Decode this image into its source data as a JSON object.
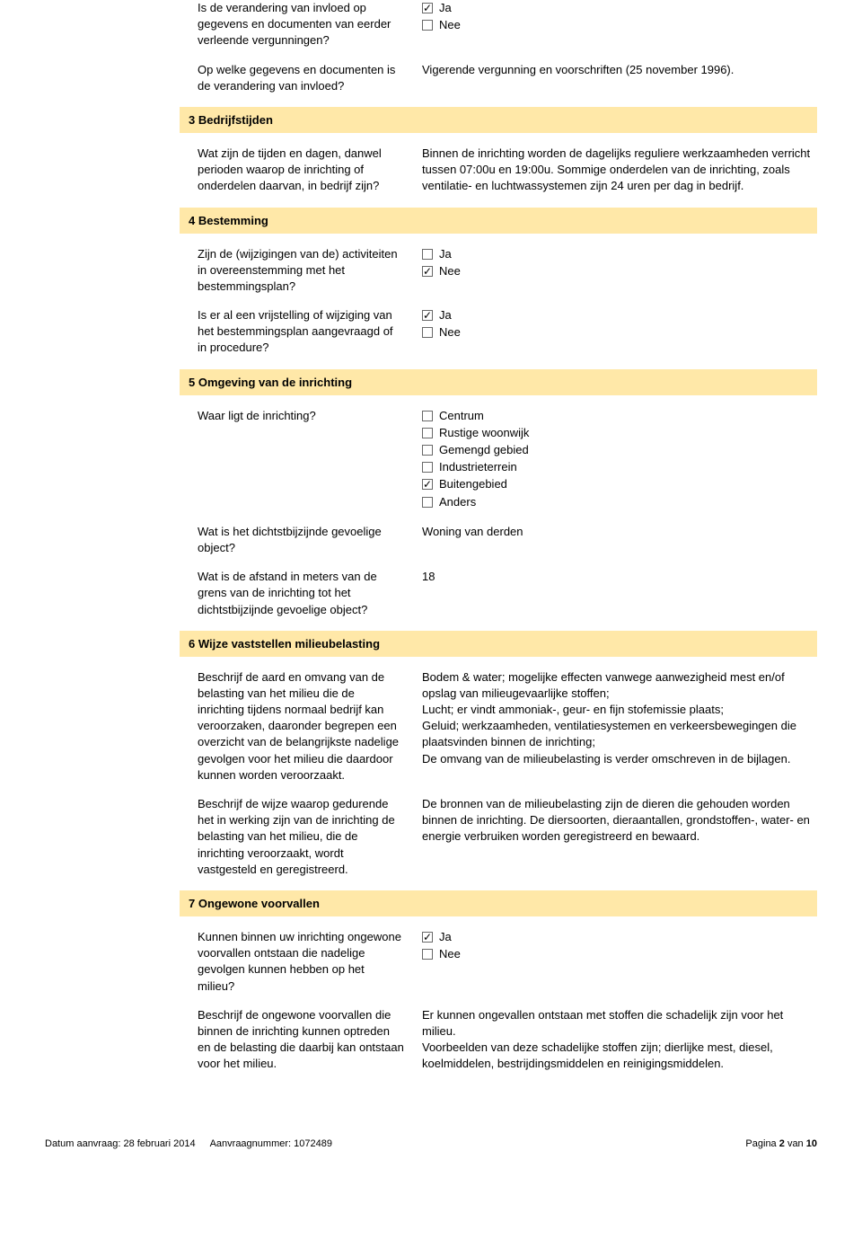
{
  "colors": {
    "header_bg": "#ffe8a8",
    "text": "#000000",
    "checkbox_border": "#686868"
  },
  "s2": {
    "q1": "Is de verandering van invloed op gegevens en documenten van eerder verleende vergunningen?",
    "a1_ja": "Ja",
    "a1_nee": "Nee",
    "q2": "Op welke gegevens en documenten is de verandering van invloed?",
    "a2": "Vigerende vergunning en voorschriften (25 november 1996)."
  },
  "s3": {
    "title": "3 Bedrijfstijden",
    "q1": "Wat zijn de tijden en dagen, danwel perioden waarop de inrichting of onderdelen daarvan, in bedrijf zijn?",
    "a1": "Binnen de inrichting worden de dagelijks reguliere werkzaamheden verricht tussen 07:00u en 19:00u. Sommige onderdelen van de inrichting, zoals ventilatie- en luchtwassystemen zijn 24 uren per dag in bedrijf."
  },
  "s4": {
    "title": "4 Bestemming",
    "q1": "Zijn de (wijzigingen van de) activiteiten in overeenstemming met het bestemmingsplan?",
    "a1_ja": "Ja",
    "a1_nee": "Nee",
    "q2": "Is er al een vrijstelling of wijziging van het bestemmingsplan aangevraagd of in procedure?",
    "a2_ja": "Ja",
    "a2_nee": "Nee"
  },
  "s5": {
    "title": "5 Omgeving van de inrichting",
    "q1": "Waar ligt de inrichting?",
    "opts": {
      "centrum": "Centrum",
      "rustige": "Rustige woonwijk",
      "gemengd": "Gemengd gebied",
      "industrie": "Industrieterrein",
      "buiten": "Buitengebied",
      "anders": "Anders"
    },
    "q2": "Wat is het dichtstbijzijnde gevoelige object?",
    "a2": "Woning van derden",
    "q3": "Wat is de afstand in meters van de grens van de inrichting tot het dichtstbijzijnde gevoelige object?",
    "a3": "18"
  },
  "s6": {
    "title": "6 Wijze vaststellen milieubelasting",
    "q1": "Beschrijf de aard en omvang van de belasting van het milieu die de inrichting tijdens normaal bedrijf kan veroorzaken, daaronder begrepen een overzicht van de belangrijkste nadelige gevolgen voor het milieu die daardoor kunnen worden veroorzaakt.",
    "a1": "Bodem & water; mogelijke effecten vanwege aanwezigheid mest en/of opslag van milieugevaarlijke stoffen;\nLucht; er vindt ammoniak-, geur- en fijn stofemissie plaats;\nGeluid; werkzaamheden, ventilatiesystemen en verkeersbewegingen die plaatsvinden binnen de inrichting;\nDe omvang van de milieubelasting is verder omschreven in de bijlagen.",
    "q2": "Beschrijf de wijze waarop gedurende het in werking zijn van de inrichting de belasting van het milieu, die de inrichting veroorzaakt, wordt vastgesteld en geregistreerd.",
    "a2": "De bronnen van de milieubelasting zijn de dieren die gehouden worden binnen de inrichting. De diersoorten, dieraantallen, grondstoffen-, water- en energie verbruiken worden geregistreerd en bewaard."
  },
  "s7": {
    "title": "7 Ongewone voorvallen",
    "q1": "Kunnen binnen uw inrichting ongewone voorvallen ontstaan die nadelige gevolgen kunnen hebben op het milieu?",
    "a1_ja": "Ja",
    "a1_nee": "Nee",
    "q2": "Beschrijf de ongewone voorvallen die binnen de inrichting kunnen optreden en de belasting die daarbij kan ontstaan voor het milieu.",
    "a2": "Er kunnen ongevallen ontstaan met stoffen die schadelijk zijn voor het milieu.\nVoorbeelden van deze schadelijke stoffen zijn; dierlijke mest, diesel, koelmiddelen, bestrijdingsmiddelen en reinigingsmiddelen."
  },
  "footer": {
    "date_label": "Datum aanvraag:",
    "date_value": "28 februari 2014",
    "num_label": "Aanvraagnummer:",
    "num_value": "1072489",
    "page_label": "Pagina",
    "page_cur": "2",
    "page_of": "van",
    "page_total": "10"
  }
}
